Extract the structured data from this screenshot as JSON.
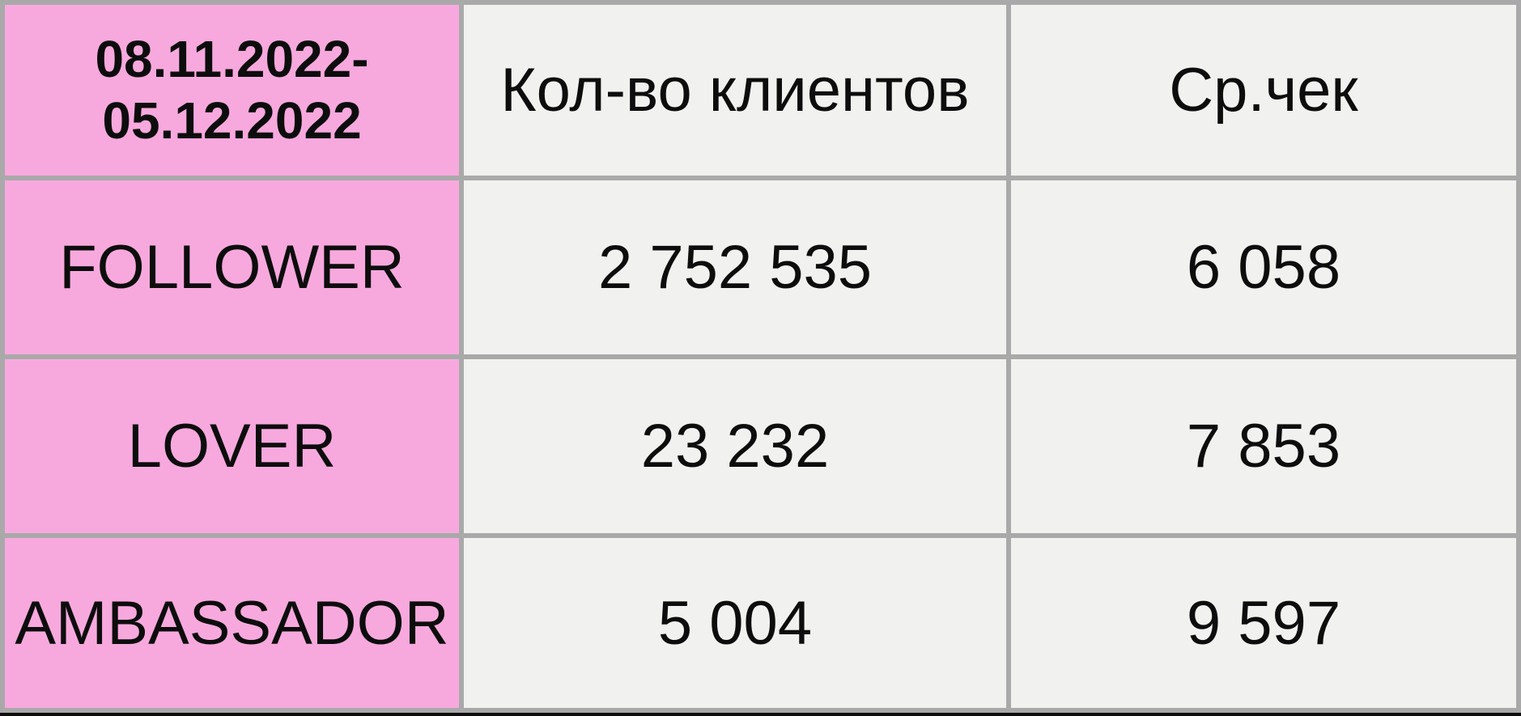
{
  "colors": {
    "row_label_pink": "#f7a9de",
    "cell_gray": "#f1f1f0",
    "gridline_gray": "#a9a9a9",
    "text_black": "#0d0d0d",
    "bottom_bar_black": "#0e0e0e"
  },
  "table": {
    "header": {
      "period": "08.11.2022-05.12.2022",
      "period_lines": [
        "08.11.2022-",
        "05.12.2022"
      ],
      "col_clients": "Кол-во клиентов",
      "col_avg_check": "Ср.чек"
    },
    "rows": [
      {
        "segment": "FOLLOWER",
        "clients": "2 752 535",
        "avg_check": "6 058"
      },
      {
        "segment": "LOVER",
        "clients": "23 232",
        "avg_check": "7 853"
      },
      {
        "segment": "AMBASSADOR",
        "clients": "5 004",
        "avg_check": "9 597"
      }
    ]
  },
  "chart_data": {
    "type": "table",
    "title": "08.11.2022-05.12.2022",
    "columns": [
      "08.11.2022-05.12.2022",
      "Кол-во клиентов",
      "Ср.чек"
    ],
    "categories": [
      "FOLLOWER",
      "LOVER",
      "AMBASSADOR"
    ],
    "series": [
      {
        "name": "Кол-во клиентов",
        "values": [
          2752535,
          23232,
          5004
        ]
      },
      {
        "name": "Ср.чек",
        "values": [
          6058,
          7853,
          9597
        ]
      }
    ],
    "layout": {
      "grid": "on",
      "header_row": true,
      "label_column_highlighted": true
    }
  }
}
